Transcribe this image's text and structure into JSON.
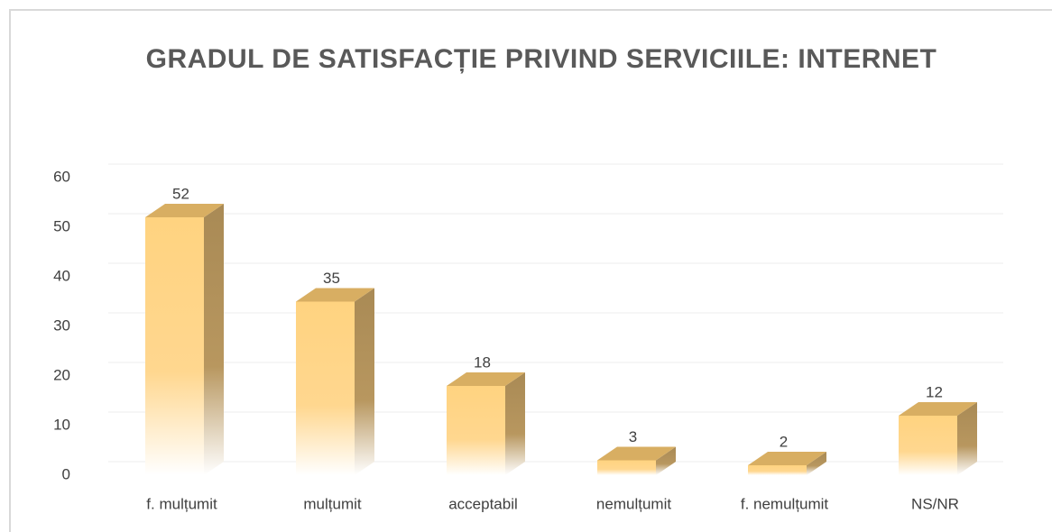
{
  "chart_data": {
    "type": "bar3d",
    "title": "GRADUL DE SATISFACȚIE PRIVIND SERVICIILE: INTERNET",
    "categories": [
      "f. mulțumit",
      "mulțumit",
      "acceptabil",
      "nemulțumit",
      "f. nemulțumit",
      "NS/NR"
    ],
    "values": [
      52,
      35,
      18,
      3,
      2,
      12
    ],
    "color": "#ffd380",
    "ylim": [
      0,
      60
    ],
    "yticks": [
      0,
      10,
      20,
      30,
      40,
      50,
      60
    ],
    "grid": true
  }
}
